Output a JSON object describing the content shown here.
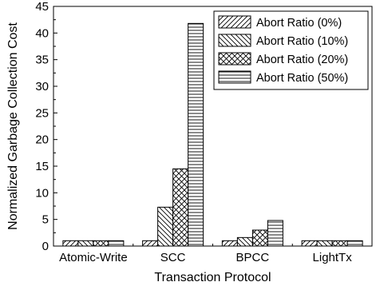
{
  "chart_data": {
    "type": "bar",
    "xlabel": "Transaction Protocol",
    "ylabel": "Normalized Garbage Collection Cost",
    "categories": [
      "Atomic-Write",
      "SCC",
      "BPCC",
      "LightTx"
    ],
    "series": [
      {
        "name": "Abort Ratio (0%)",
        "pattern": "diag-forward",
        "values": [
          1.0,
          1.0,
          1.0,
          1.0
        ]
      },
      {
        "name": "Abort Ratio (10%)",
        "pattern": "diag-backward",
        "values": [
          1.0,
          7.3,
          1.6,
          1.0
        ]
      },
      {
        "name": "Abort Ratio (20%)",
        "pattern": "crosshatch",
        "values": [
          1.0,
          14.5,
          3.0,
          1.0
        ]
      },
      {
        "name": "Abort Ratio (50%)",
        "pattern": "horizontal",
        "values": [
          1.0,
          41.8,
          4.8,
          1.0
        ]
      }
    ],
    "ylim": [
      0,
      45
    ],
    "yticks": [
      0,
      5,
      10,
      15,
      20,
      25,
      30,
      35,
      40,
      45
    ],
    "grid": false,
    "legend_position": "top-right"
  }
}
